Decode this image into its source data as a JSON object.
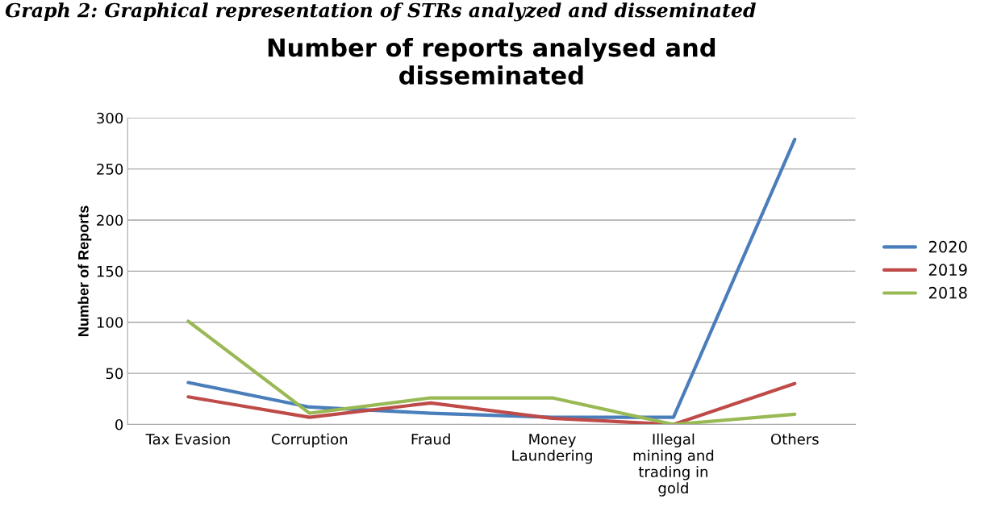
{
  "chart_data": {
    "type": "line",
    "title": "Number of reports analysed and\ndisseminated",
    "ylabel": "Number of Reports",
    "annotations": [
      "Graph 2: Graphical representation of STRs analyzed and disseminated"
    ],
    "categories": [
      "Tax Evasion",
      "Corruption",
      "Fraud",
      "Money\nLaundering",
      "Illegal\nmining and\ntrading in\ngold",
      "Others"
    ],
    "series": [
      {
        "name": "2020",
        "color": "#4a7ebb",
        "values": [
          41,
          17,
          11,
          7,
          7,
          279
        ]
      },
      {
        "name": "2019",
        "color": "#be4b48",
        "values": [
          27,
          7,
          21,
          6,
          0,
          40
        ]
      },
      {
        "name": "2018",
        "color": "#98b954",
        "values": [
          101,
          11,
          26,
          26,
          0,
          10
        ]
      }
    ],
    "ylim": [
      0,
      300
    ],
    "yticks": [
      0,
      50,
      100,
      150,
      200,
      250,
      300
    ],
    "grid": "y",
    "legend": "right"
  }
}
